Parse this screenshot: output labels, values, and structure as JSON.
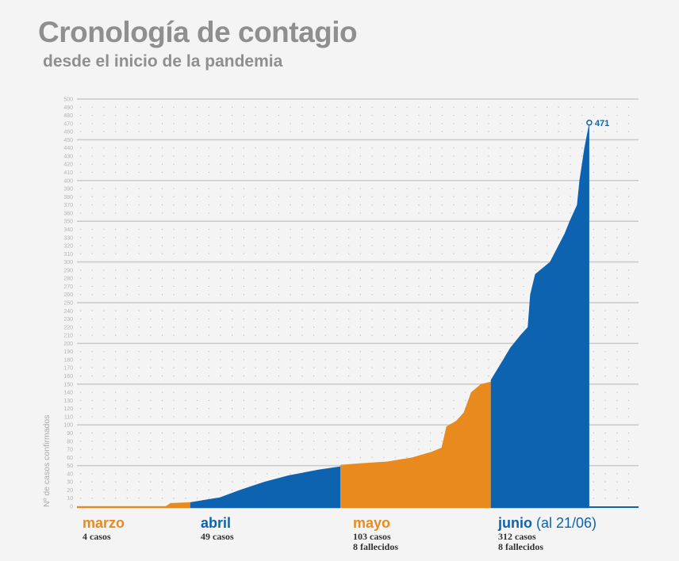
{
  "header": {
    "title": "Cronología de contagio",
    "subtitle": "desde el inicio de la pandemia"
  },
  "colors": {
    "orange": "#e98a1f",
    "blue": "#0d63b0",
    "grid": "#c9c9c9",
    "tick": "#b5b5b5"
  },
  "months": [
    {
      "name": "marzo",
      "note": "",
      "stats": [
        "4 casos"
      ],
      "color": "#e98a1f"
    },
    {
      "name": "abril",
      "note": "",
      "stats": [
        "49 casos"
      ],
      "color": "#0d63b0"
    },
    {
      "name": "mayo",
      "note": "",
      "stats": [
        "103 casos",
        "8 fallecidos"
      ],
      "color": "#e98a1f"
    },
    {
      "name": "junio",
      "note": "(al 21/06)",
      "stats": [
        "312 casos",
        "8 fallecidos"
      ],
      "color": "#0d63b0"
    }
  ],
  "chart_data": {
    "type": "area",
    "title": "Cronología de contagio",
    "subtitle": "desde el inicio de la pandemia",
    "xlabel": "",
    "ylabel": "Nº de casos confirmados",
    "ylim": [
      0,
      500
    ],
    "xlim": [
      0,
      114
    ],
    "x_unit": "days since ~9 March",
    "ytick_step": 10,
    "major_grid_step": 50,
    "annotation": {
      "label": "471",
      "x": 104,
      "y": 471
    },
    "series": [
      {
        "name": "marzo",
        "color": "#e98a1f",
        "points": [
          [
            0,
            0
          ],
          [
            18,
            0
          ],
          [
            19,
            4
          ],
          [
            23,
            5
          ]
        ]
      },
      {
        "name": "abril",
        "color": "#0d63b0",
        "points": [
          [
            23,
            5
          ],
          [
            26,
            8
          ],
          [
            29,
            11
          ],
          [
            33,
            20
          ],
          [
            38,
            30
          ],
          [
            43,
            38
          ],
          [
            49,
            45
          ],
          [
            53.5,
            49
          ]
        ]
      },
      {
        "name": "mayo",
        "color": "#e98a1f",
        "points": [
          [
            53.5,
            51
          ],
          [
            58,
            53
          ],
          [
            63,
            55
          ],
          [
            68,
            60
          ],
          [
            72,
            67
          ],
          [
            74,
            72
          ],
          [
            75,
            98
          ],
          [
            77,
            105
          ],
          [
            78.5,
            115
          ],
          [
            80,
            140
          ],
          [
            82,
            150
          ],
          [
            84,
            153
          ]
        ]
      },
      {
        "name": "junio",
        "color": "#0d63b0",
        "points": [
          [
            84,
            155
          ],
          [
            86,
            175
          ],
          [
            88,
            195
          ],
          [
            90,
            210
          ],
          [
            91.5,
            220
          ],
          [
            92,
            260
          ],
          [
            93,
            285
          ],
          [
            96,
            300
          ],
          [
            99,
            335
          ],
          [
            100,
            350
          ],
          [
            101.5,
            370
          ],
          [
            102,
            400
          ],
          [
            103,
            440
          ],
          [
            104,
            471
          ]
        ]
      }
    ]
  }
}
